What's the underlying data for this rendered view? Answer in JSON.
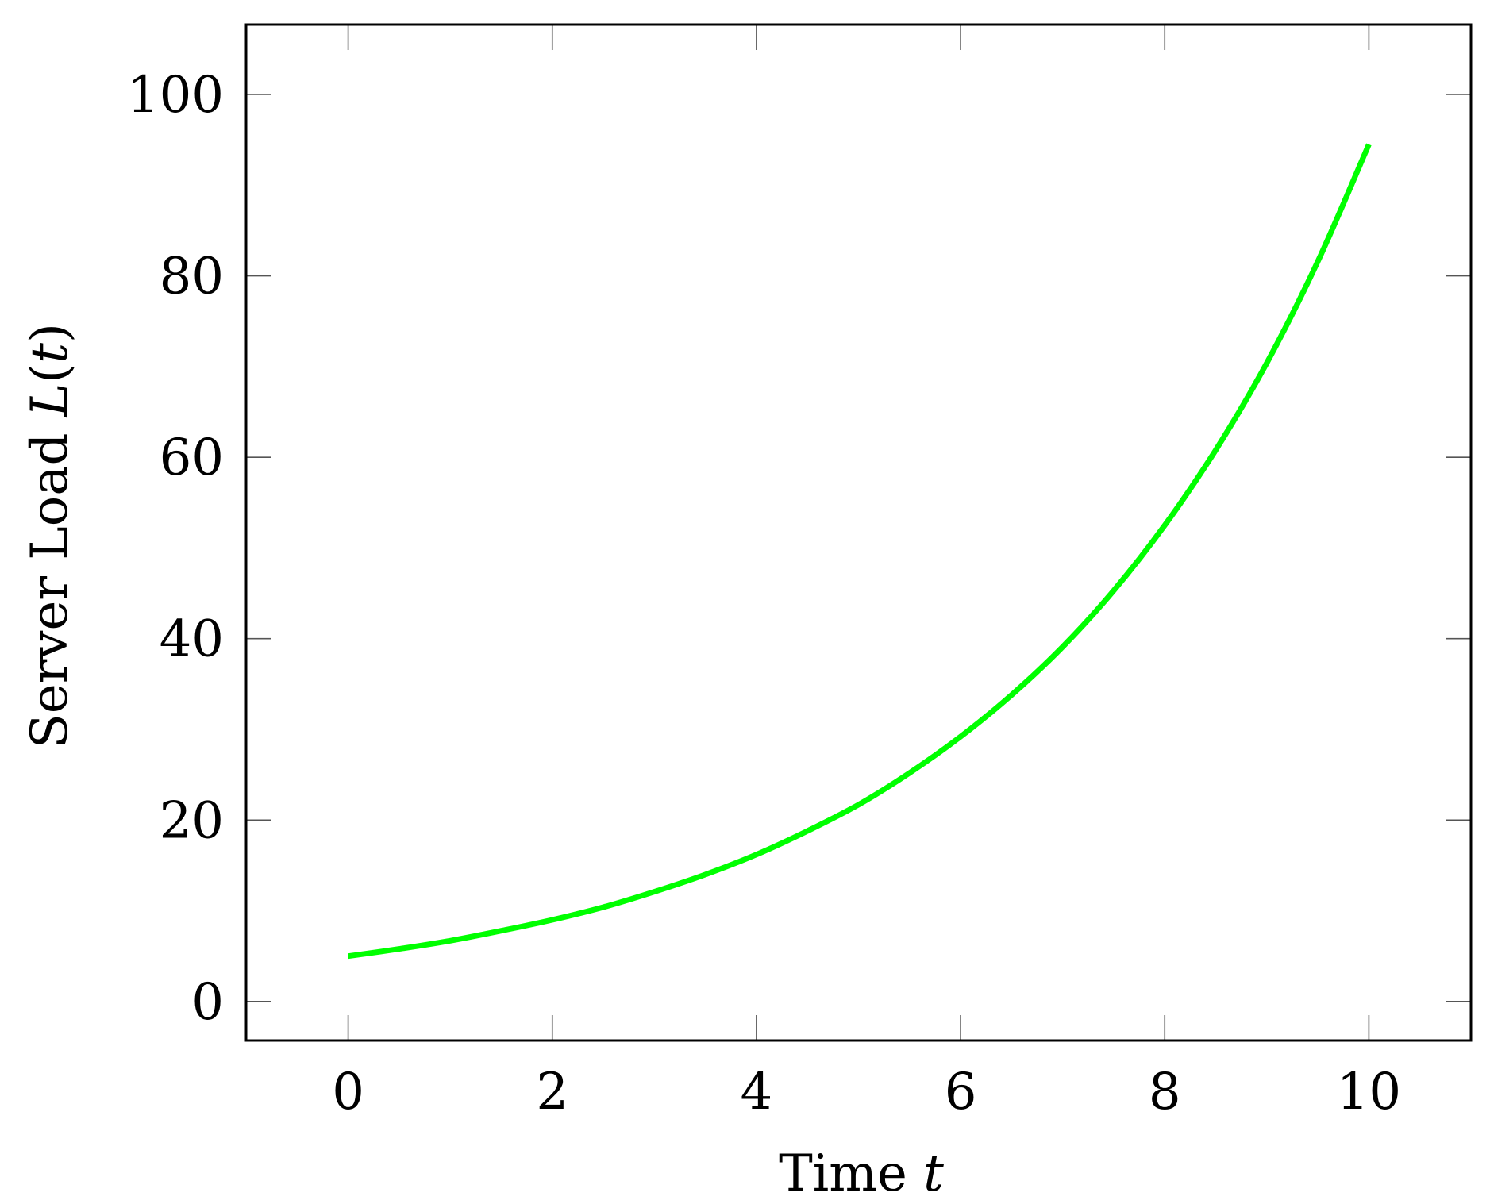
{
  "chart_data": {
    "type": "line",
    "title": "",
    "xlabel": {
      "text": "Time ",
      "math": "t"
    },
    "ylabel": {
      "text": "Server Load ",
      "math_fn": "L",
      "open": "(",
      "math_arg": "t",
      "close": ")"
    },
    "xlim": [
      -1,
      11
    ],
    "ylim": [
      -4.3,
      107.7
    ],
    "xticks": [
      0,
      2,
      4,
      6,
      8,
      10
    ],
    "xtick_labels": [
      "0",
      "2",
      "4",
      "6",
      "8",
      "10"
    ],
    "yticks": [
      0,
      20,
      40,
      60,
      80,
      100
    ],
    "ytick_labels": [
      "0",
      "20",
      "40",
      "60",
      "80",
      "100"
    ],
    "grid": false,
    "legend": "none",
    "series": [
      {
        "color": "#00ff00",
        "x": [
          0,
          0.5,
          1,
          1.5,
          2,
          2.5,
          3,
          3.5,
          4,
          4.5,
          5,
          5.5,
          6,
          6.5,
          7,
          7.5,
          8,
          8.5,
          9,
          9.5,
          10
        ],
        "y": [
          5.0,
          5.8,
          6.7,
          7.8,
          9.0,
          10.4,
          12.1,
          14.0,
          16.2,
          18.8,
          21.7,
          25.2,
          29.2,
          33.8,
          39.1,
          45.3,
          52.5,
          60.8,
          70.4,
          81.6,
          94.5
        ]
      }
    ]
  }
}
